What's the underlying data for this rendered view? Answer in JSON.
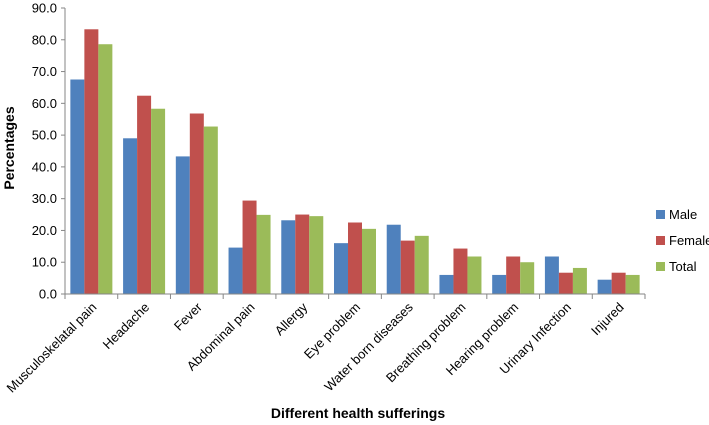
{
  "chart_data": {
    "type": "bar",
    "title": "",
    "xlabel": "Different health sufferings",
    "ylabel": "Percentages",
    "ylim": [
      0,
      90
    ],
    "yticks": [
      "0.0",
      "10.0",
      "20.0",
      "30.0",
      "40.0",
      "50.0",
      "60.0",
      "70.0",
      "80.0",
      "90.0"
    ],
    "grid": false,
    "legend_position": "right",
    "categories": [
      "Musculoskelatal pain",
      "Headache",
      "Fever",
      "Abdominal pain",
      "Allergy",
      "Eye problem",
      "Water born diseases",
      "Breathing problem",
      "Hearing problem",
      "Urinary Infection",
      "Injured"
    ],
    "series": [
      {
        "name": "Male",
        "color": "#4F81BD",
        "values": [
          67.5,
          49.0,
          43.3,
          14.6,
          23.2,
          16.0,
          21.8,
          6.0,
          6.0,
          11.8,
          4.5
        ]
      },
      {
        "name": "Female",
        "color": "#C0504D",
        "values": [
          83.3,
          62.4,
          56.8,
          29.4,
          25.0,
          22.5,
          16.8,
          14.3,
          11.8,
          6.7,
          6.7
        ]
      },
      {
        "name": "Total",
        "color": "#9BBB59",
        "values": [
          78.6,
          58.3,
          52.7,
          24.9,
          24.5,
          20.5,
          18.3,
          11.8,
          10.0,
          8.2,
          6.0
        ]
      }
    ]
  }
}
